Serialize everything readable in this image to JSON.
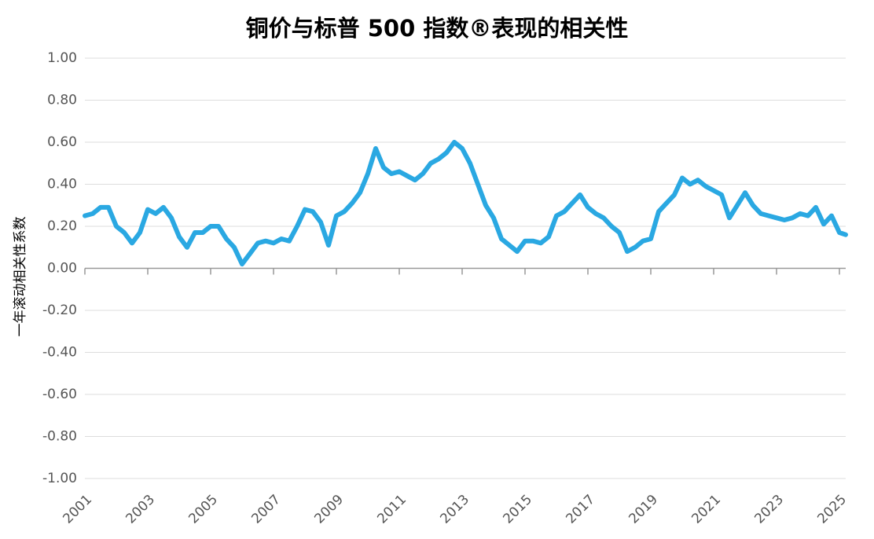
{
  "chart_data": {
    "type": "line",
    "title": "铜价与标普 500 指数®表现的相关性",
    "y_label": "一年滚动相关性系数",
    "grid": true,
    "xlim": [
      2001,
      2025.2
    ],
    "xticks": [
      2001,
      2003,
      2005,
      2007,
      2009,
      2011,
      2013,
      2015,
      2017,
      2019,
      2021,
      2023,
      2025
    ],
    "ylim": [
      -1,
      1
    ],
    "yticks": [
      {
        "value": 1,
        "label": "1.00"
      },
      {
        "value": 0.8,
        "label": "0.80"
      },
      {
        "value": 0.6,
        "label": "0.60"
      },
      {
        "value": 0.4,
        "label": "0.40"
      },
      {
        "value": 0.2,
        "label": "0.20"
      },
      {
        "value": 0,
        "label": "0.00"
      },
      {
        "value": -0.2,
        "label": "-0.20"
      },
      {
        "value": -0.4,
        "label": "-0.40"
      },
      {
        "value": -0.6,
        "label": "-0.60"
      },
      {
        "value": -0.8,
        "label": "-0.80"
      },
      {
        "value": -1,
        "label": "-1.00"
      }
    ],
    "x": [
      2001,
      2001.25,
      2001.5,
      2001.75,
      2002,
      2002.25,
      2002.5,
      2002.75,
      2003,
      2003.25,
      2003.5,
      2003.75,
      2004,
      2004.25,
      2004.5,
      2004.75,
      2005,
      2005.25,
      2005.5,
      2005.75,
      2006,
      2006.25,
      2006.5,
      2006.75,
      2007,
      2007.25,
      2007.5,
      2007.75,
      2008,
      2008.25,
      2008.5,
      2008.75,
      2009,
      2009.25,
      2009.5,
      2009.75,
      2010,
      2010.25,
      2010.5,
      2010.75,
      2011,
      2011.25,
      2011.5,
      2011.75,
      2012,
      2012.25,
      2012.5,
      2012.75,
      2013,
      2013.25,
      2013.5,
      2013.75,
      2014,
      2014.25,
      2014.5,
      2014.75,
      2015,
      2015.25,
      2015.5,
      2015.75,
      2016,
      2016.25,
      2016.5,
      2016.75,
      2017,
      2017.25,
      2017.5,
      2017.75,
      2018,
      2018.25,
      2018.5,
      2018.75,
      2019,
      2019.25,
      2019.5,
      2019.75,
      2020,
      2020.25,
      2020.5,
      2020.75,
      2021,
      2021.25,
      2021.5,
      2021.75,
      2022,
      2022.25,
      2022.5,
      2022.75,
      2023,
      2023.25,
      2023.5,
      2023.75,
      2024,
      2024.25,
      2024.5,
      2024.75,
      2025,
      2025.2
    ],
    "series": [
      {
        "name": "一年滚动相关性系数",
        "color": "#2aa8e2",
        "values": [
          0.25,
          0.26,
          0.29,
          0.29,
          0.2,
          0.17,
          0.12,
          0.17,
          0.28,
          0.26,
          0.29,
          0.24,
          0.15,
          0.1,
          0.17,
          0.17,
          0.2,
          0.2,
          0.14,
          0.1,
          0.02,
          0.07,
          0.12,
          0.13,
          0.12,
          0.14,
          0.13,
          0.2,
          0.28,
          0.27,
          0.22,
          0.11,
          0.25,
          0.27,
          0.31,
          0.36,
          0.45,
          0.57,
          0.48,
          0.45,
          0.46,
          0.44,
          0.42,
          0.45,
          0.5,
          0.52,
          0.55,
          0.6,
          0.57,
          0.5,
          0.4,
          0.3,
          0.24,
          0.14,
          0.11,
          0.08,
          0.13,
          0.13,
          0.12,
          0.15,
          0.25,
          0.27,
          0.31,
          0.35,
          0.29,
          0.26,
          0.24,
          0.2,
          0.17,
          0.08,
          0.1,
          0.13,
          0.14,
          0.27,
          0.31,
          0.35,
          0.43,
          0.4,
          0.42,
          0.39,
          0.37,
          0.35,
          0.24,
          0.3,
          0.36,
          0.3,
          0.26,
          0.25,
          0.24,
          0.23,
          0.24,
          0.26,
          0.25,
          0.29,
          0.21,
          0.25,
          0.17,
          0.16
        ]
      }
    ]
  }
}
